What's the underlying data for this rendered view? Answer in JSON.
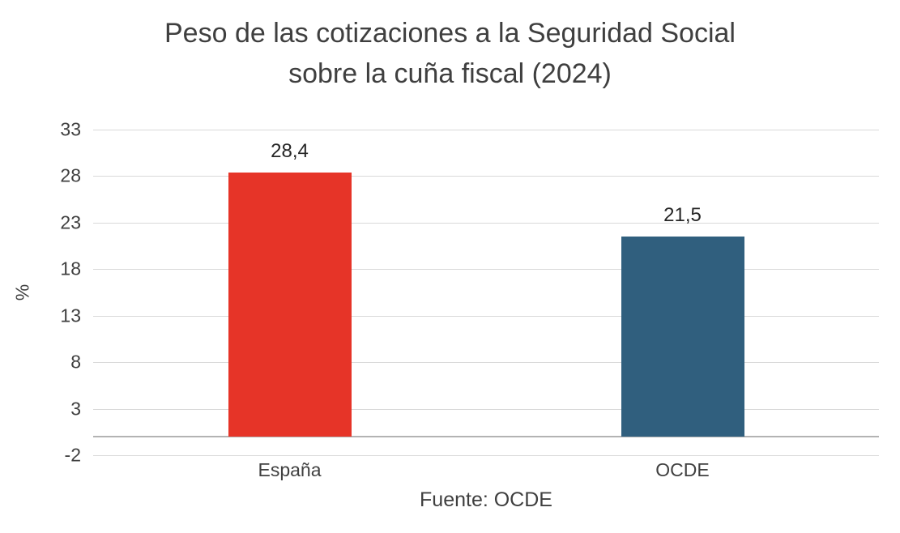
{
  "title": {
    "line1": "Peso de las cotizaciones a la Seguridad Social",
    "line2": "sobre la cuña fiscal (2024)"
  },
  "footer": "Fuente: OCDE",
  "chart_data": {
    "type": "bar",
    "title": "Peso de las cotizaciones a la Seguridad Social sobre la cuña fiscal (2024)",
    "categories": [
      "España",
      "OCDE"
    ],
    "values": [
      28.4,
      21.5
    ],
    "value_labels": [
      "28,4",
      "21,5"
    ],
    "colors": [
      "#e63428",
      "#305f7e"
    ],
    "xlabel": "",
    "ylabel": "%",
    "ylim": [
      -2,
      33
    ],
    "yticks": [
      33,
      28,
      23,
      18,
      13,
      8,
      3,
      -2
    ],
    "baseline": 0,
    "grid": true,
    "legend": "none",
    "source": "Fuente: OCDE",
    "gridline_color": "#d9d9d9",
    "axis_line_color": "#b3b3b3"
  }
}
